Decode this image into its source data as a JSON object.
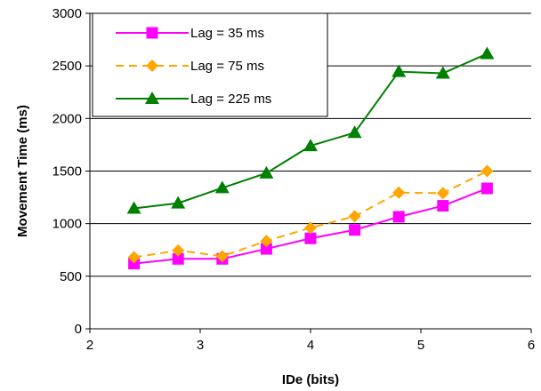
{
  "chart_data": {
    "type": "line",
    "title": "",
    "xlabel": "IDe (bits)",
    "ylabel": "Movement Time (ms)",
    "xlim": [
      2,
      6
    ],
    "ylim": [
      0,
      3000
    ],
    "xticks": [
      "2",
      "3",
      "4",
      "5",
      "6"
    ],
    "yticks": [
      "0",
      "500",
      "1000",
      "1500",
      "2000",
      "2500",
      "3000"
    ],
    "grid": "horizontal",
    "legend_position": "top-left",
    "x": [
      2.4,
      2.8,
      3.2,
      3.6,
      4.0,
      4.4,
      4.8,
      5.2,
      5.6
    ],
    "series": [
      {
        "name": "Lag = 35 ms",
        "color": "#ff00ff",
        "dash": "solid",
        "marker": "square",
        "values": [
          620,
          665,
          665,
          760,
          860,
          940,
          1065,
          1170,
          1335
        ]
      },
      {
        "name": "Lag = 75 ms",
        "color": "#ffa500",
        "dash": "dashed",
        "marker": "diamond",
        "values": [
          680,
          745,
          690,
          835,
          960,
          1070,
          1295,
          1290,
          1500
        ]
      },
      {
        "name": "Lag = 225 ms",
        "color": "#008000",
        "dash": "solid",
        "marker": "triangle",
        "values": [
          1145,
          1195,
          1340,
          1480,
          1740,
          1865,
          2445,
          2430,
          2615
        ]
      }
    ]
  }
}
